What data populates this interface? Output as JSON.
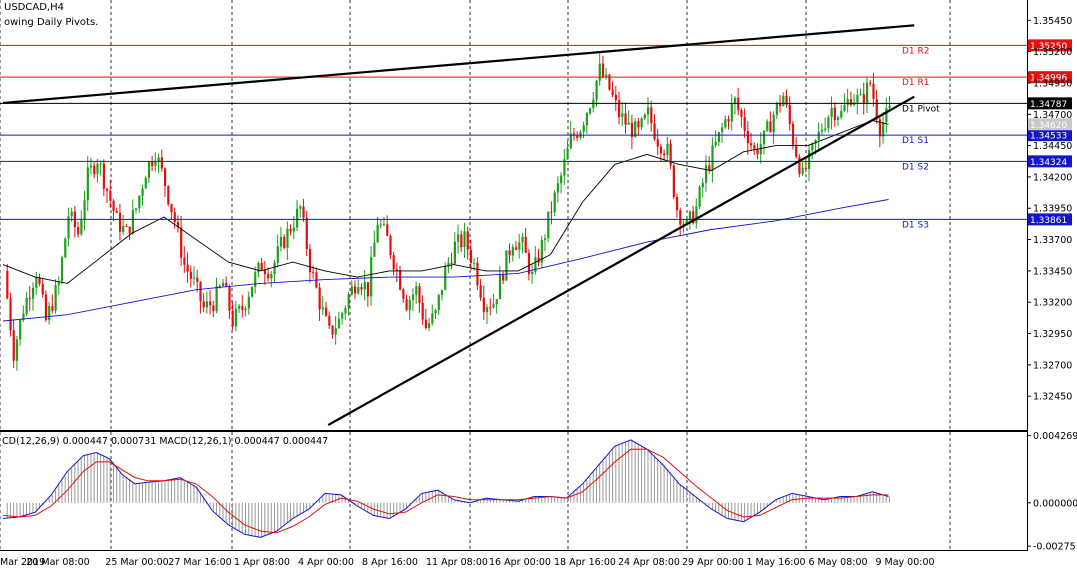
{
  "header": {
    "symbol": "USDCAD,H4",
    "subtitle": "owing Daily Pivots."
  },
  "macd": {
    "label": "CD(12,26,9) 0.000447 0.000731 MACD(12,26,1) 0.000447 0.000447",
    "ticks": [
      {
        "v": 0.004269,
        "label": "0.004269"
      },
      {
        "v": 0.0,
        "label": "0.000000"
      },
      {
        "v": -0.002751,
        "label": "-0.002751"
      }
    ]
  },
  "colors": {
    "bull": "#1e9e1e",
    "bear": "#e01010",
    "resistance": "#e01010",
    "support": "#1515c8",
    "pivot": "#000000",
    "ma_fast": "#000000",
    "ma_slow": "#1515c8",
    "trend": "#000000",
    "macd_line": "#1515c8",
    "signal_line": "#e01010",
    "hist": "#9a9a9a"
  },
  "chart_data": {
    "type": "candlestick",
    "symbol": "USDCAD",
    "timeframe": "H4",
    "ylim": [
      1.3218,
      1.3558
    ],
    "y_ticks": [
      {
        "v": 1.3545,
        "label": "1.35450"
      },
      {
        "v": 1.352,
        "label": "1.35200"
      },
      {
        "v": 1.3495,
        "label": "1.34950"
      },
      {
        "v": 1.347,
        "label": "1.34700"
      },
      {
        "v": 1.3445,
        "label": "1.34450"
      },
      {
        "v": 1.342,
        "label": "1.34200"
      },
      {
        "v": 1.3395,
        "label": "1.33950"
      },
      {
        "v": 1.337,
        "label": "1.33700"
      },
      {
        "v": 1.3345,
        "label": "1.33450"
      },
      {
        "v": 1.332,
        "label": "1.33200"
      },
      {
        "v": 1.3295,
        "label": "1.32950"
      },
      {
        "v": 1.327,
        "label": "1.32700"
      },
      {
        "v": 1.3245,
        "label": "1.32450"
      }
    ],
    "x_labels": [
      "Mar 2019",
      "20 Mar 08:00",
      "25 Mar 00:00",
      "27 Mar 16:00",
      "1 Apr 08:00",
      "4 Apr 00:00",
      "8 Apr 16:00",
      "11 Apr 08:00",
      "16 Apr 00:00",
      "18 Apr 16:00",
      "24 Apr 08:00",
      "29 Apr 00:00",
      "1 May 16:00",
      "6 May 08:00",
      "9 May 00:00"
    ],
    "pivots": [
      {
        "name": "D1 R2",
        "value": 1.3525,
        "badge": "1.35250",
        "role": "resistance"
      },
      {
        "name": "D1 R1",
        "value": 1.34996,
        "badge": "1.34996",
        "role": "resistance"
      },
      {
        "name": "D1 Pivot",
        "value": 1.34787,
        "badge": "1.34787",
        "role": "pivot"
      },
      {
        "name": "D1 S1",
        "value": 1.34533,
        "badge": "1.34533",
        "role": "support"
      },
      {
        "name": "D1 S2",
        "value": 1.34324,
        "badge": "1.34324",
        "role": "support"
      },
      {
        "name": "D1 S3",
        "value": 1.33861,
        "badge": "1.33861",
        "role": "support"
      }
    ],
    "current_price": {
      "value": 1.3462,
      "badge": "1.34620"
    },
    "trendlines": [
      {
        "from": [
          0,
          1.3479
        ],
        "to": [
          283,
          1.3541
        ],
        "width": 2.2
      },
      {
        "from": [
          101,
          1.3222
        ],
        "to": [
          283,
          1.3484
        ],
        "width": 2.2
      }
    ],
    "close_path": [
      [
        0,
        1.3345
      ],
      [
        3,
        1.328
      ],
      [
        6,
        1.3315
      ],
      [
        10,
        1.3345
      ],
      [
        13,
        1.3305
      ],
      [
        17,
        1.3335
      ],
      [
        20,
        1.339
      ],
      [
        23,
        1.3375
      ],
      [
        26,
        1.342
      ],
      [
        29,
        1.3435
      ],
      [
        32,
        1.341
      ],
      [
        35,
        1.3385
      ],
      [
        38,
        1.3375
      ],
      [
        41,
        1.3395
      ],
      [
        44,
        1.3425
      ],
      [
        47,
        1.344
      ],
      [
        50,
        1.3415
      ],
      [
        53,
        1.3385
      ],
      [
        56,
        1.335
      ],
      [
        59,
        1.3335
      ],
      [
        62,
        1.3315
      ],
      [
        65,
        1.332
      ],
      [
        68,
        1.3335
      ],
      [
        71,
        1.3305
      ],
      [
        74,
        1.3315
      ],
      [
        77,
        1.3335
      ],
      [
        80,
        1.335
      ],
      [
        83,
        1.3345
      ],
      [
        86,
        1.3365
      ],
      [
        89,
        1.338
      ],
      [
        92,
        1.3395
      ],
      [
        95,
        1.335
      ],
      [
        98,
        1.332
      ],
      [
        101,
        1.3295
      ],
      [
        104,
        1.3305
      ],
      [
        107,
        1.3325
      ],
      [
        110,
        1.334
      ],
      [
        113,
        1.333
      ],
      [
        116,
        1.3385
      ],
      [
        119,
        1.337
      ],
      [
        122,
        1.3345
      ],
      [
        125,
        1.332
      ],
      [
        128,
        1.333
      ],
      [
        131,
        1.33
      ],
      [
        134,
        1.331
      ],
      [
        137,
        1.3345
      ],
      [
        140,
        1.3365
      ],
      [
        143,
        1.337
      ],
      [
        146,
        1.335
      ],
      [
        149,
        1.332
      ],
      [
        152,
        1.332
      ],
      [
        155,
        1.3345
      ],
      [
        158,
        1.337
      ],
      [
        161,
        1.3365
      ],
      [
        164,
        1.334
      ],
      [
        167,
        1.3365
      ],
      [
        170,
        1.3395
      ],
      [
        173,
        1.342
      ],
      [
        176,
        1.345
      ],
      [
        179,
        1.346
      ],
      [
        182,
        1.348
      ],
      [
        185,
        1.3505
      ],
      [
        188,
        1.349
      ],
      [
        191,
        1.347
      ],
      [
        194,
        1.346
      ],
      [
        197,
        1.3455
      ],
      [
        200,
        1.347
      ],
      [
        203,
        1.345
      ],
      [
        206,
        1.344
      ],
      [
        209,
        1.3395
      ],
      [
        212,
        1.338
      ],
      [
        215,
        1.3395
      ],
      [
        218,
        1.3425
      ],
      [
        221,
        1.3445
      ],
      [
        224,
        1.3465
      ],
      [
        227,
        1.348
      ],
      [
        230,
        1.346
      ],
      [
        233,
        1.344
      ],
      [
        236,
        1.345
      ],
      [
        239,
        1.347
      ],
      [
        242,
        1.3485
      ],
      [
        245,
        1.345
      ],
      [
        248,
        1.342
      ],
      [
        251,
        1.344
      ],
      [
        254,
        1.346
      ],
      [
        257,
        1.3475
      ],
      [
        260,
        1.347
      ],
      [
        263,
        1.3485
      ],
      [
        266,
        1.348
      ],
      [
        269,
        1.3495
      ],
      [
        272,
        1.346
      ],
      [
        275,
        1.3472
      ]
    ],
    "ma_fast": [
      [
        0,
        1.335
      ],
      [
        10,
        1.334
      ],
      [
        20,
        1.3335
      ],
      [
        30,
        1.3355
      ],
      [
        40,
        1.3375
      ],
      [
        50,
        1.3388
      ],
      [
        60,
        1.337
      ],
      [
        70,
        1.3352
      ],
      [
        80,
        1.3345
      ],
      [
        90,
        1.3352
      ],
      [
        100,
        1.3345
      ],
      [
        110,
        1.334
      ],
      [
        120,
        1.3345
      ],
      [
        130,
        1.3345
      ],
      [
        140,
        1.335
      ],
      [
        150,
        1.3345
      ],
      [
        160,
        1.3345
      ],
      [
        170,
        1.3358
      ],
      [
        180,
        1.34
      ],
      [
        190,
        1.343
      ],
      [
        200,
        1.3438
      ],
      [
        210,
        1.343
      ],
      [
        220,
        1.3425
      ],
      [
        230,
        1.344
      ],
      [
        240,
        1.3445
      ],
      [
        250,
        1.3445
      ],
      [
        260,
        1.3455
      ],
      [
        270,
        1.3465
      ],
      [
        275,
        1.3462
      ]
    ],
    "ma_slow": [
      [
        0,
        1.3305
      ],
      [
        20,
        1.331
      ],
      [
        40,
        1.332
      ],
      [
        60,
        1.333
      ],
      [
        80,
        1.3335
      ],
      [
        100,
        1.3338
      ],
      [
        120,
        1.334
      ],
      [
        140,
        1.334
      ],
      [
        160,
        1.3343
      ],
      [
        180,
        1.3355
      ],
      [
        200,
        1.3368
      ],
      [
        220,
        1.3378
      ],
      [
        240,
        1.3385
      ],
      [
        260,
        1.3395
      ],
      [
        275,
        1.3402
      ]
    ],
    "macd_series": [
      [
        0,
        -0.001
      ],
      [
        5,
        -0.0009
      ],
      [
        10,
        -0.0006
      ],
      [
        15,
        0.0005
      ],
      [
        20,
        0.002
      ],
      [
        25,
        0.003
      ],
      [
        29,
        0.0032
      ],
      [
        33,
        0.0028
      ],
      [
        37,
        0.0018
      ],
      [
        41,
        0.0012
      ],
      [
        45,
        0.0013
      ],
      [
        50,
        0.0014
      ],
      [
        55,
        0.0016
      ],
      [
        60,
        0.001
      ],
      [
        65,
        -0.0005
      ],
      [
        70,
        -0.0014
      ],
      [
        75,
        -0.002
      ],
      [
        80,
        -0.0022
      ],
      [
        85,
        -0.0018
      ],
      [
        90,
        -0.001
      ],
      [
        95,
        -0.0004
      ],
      [
        100,
        0.0006
      ],
      [
        105,
        0.0005
      ],
      [
        110,
        -0.0002
      ],
      [
        115,
        -0.0008
      ],
      [
        120,
        -0.001
      ],
      [
        125,
        -0.0004
      ],
      [
        130,
        0.0006
      ],
      [
        135,
        0.0008
      ],
      [
        140,
        0.0002
      ],
      [
        145,
        0.0
      ],
      [
        150,
        0.0003
      ],
      [
        155,
        0.0002
      ],
      [
        160,
        0.0001
      ],
      [
        165,
        0.0004
      ],
      [
        170,
        0.0004
      ],
      [
        175,
        0.0003
      ],
      [
        180,
        0.0012
      ],
      [
        185,
        0.0024
      ],
      [
        190,
        0.0036
      ],
      [
        195,
        0.004
      ],
      [
        200,
        0.0034
      ],
      [
        205,
        0.0024
      ],
      [
        210,
        0.0012
      ],
      [
        215,
        0.0004
      ],
      [
        220,
        -0.0004
      ],
      [
        225,
        -0.001
      ],
      [
        230,
        -0.0012
      ],
      [
        235,
        -0.0006
      ],
      [
        240,
        0.0002
      ],
      [
        245,
        0.0006
      ],
      [
        250,
        0.0004
      ],
      [
        255,
        0.0002
      ],
      [
        260,
        0.0004
      ],
      [
        265,
        0.0004
      ],
      [
        270,
        0.0007
      ],
      [
        275,
        0.0004
      ]
    ],
    "signal_series": [
      [
        0,
        -0.0008
      ],
      [
        5,
        -0.0009
      ],
      [
        10,
        -0.0008
      ],
      [
        15,
        -0.0002
      ],
      [
        20,
        0.0008
      ],
      [
        25,
        0.002
      ],
      [
        29,
        0.0026
      ],
      [
        33,
        0.0026
      ],
      [
        37,
        0.0021
      ],
      [
        41,
        0.0016
      ],
      [
        45,
        0.0014
      ],
      [
        50,
        0.0014
      ],
      [
        55,
        0.0015
      ],
      [
        60,
        0.0012
      ],
      [
        65,
        0.0004
      ],
      [
        70,
        -0.0006
      ],
      [
        75,
        -0.0014
      ],
      [
        80,
        -0.0018
      ],
      [
        85,
        -0.0019
      ],
      [
        90,
        -0.0015
      ],
      [
        95,
        -0.0009
      ],
      [
        100,
        -0.0001
      ],
      [
        105,
        0.0003
      ],
      [
        110,
        0.0001
      ],
      [
        115,
        -0.0004
      ],
      [
        120,
        -0.0007
      ],
      [
        125,
        -0.0006
      ],
      [
        130,
        0.0
      ],
      [
        135,
        0.0005
      ],
      [
        140,
        0.0004
      ],
      [
        145,
        0.0002
      ],
      [
        150,
        0.0002
      ],
      [
        155,
        0.0002
      ],
      [
        160,
        0.0002
      ],
      [
        165,
        0.0003
      ],
      [
        170,
        0.0004
      ],
      [
        175,
        0.0003
      ],
      [
        180,
        0.0007
      ],
      [
        185,
        0.0016
      ],
      [
        190,
        0.0026
      ],
      [
        195,
        0.0034
      ],
      [
        200,
        0.0034
      ],
      [
        205,
        0.0029
      ],
      [
        210,
        0.002
      ],
      [
        215,
        0.0011
      ],
      [
        220,
        0.0003
      ],
      [
        225,
        -0.0005
      ],
      [
        230,
        -0.0009
      ],
      [
        235,
        -0.0008
      ],
      [
        240,
        -0.0003
      ],
      [
        245,
        0.0002
      ],
      [
        250,
        0.0003
      ],
      [
        255,
        0.0003
      ],
      [
        260,
        0.0003
      ],
      [
        265,
        0.0004
      ],
      [
        270,
        0.0005
      ],
      [
        275,
        0.0005
      ]
    ],
    "macd_ylim": [
      -0.003,
      0.0045
    ],
    "bars_total": 284
  }
}
